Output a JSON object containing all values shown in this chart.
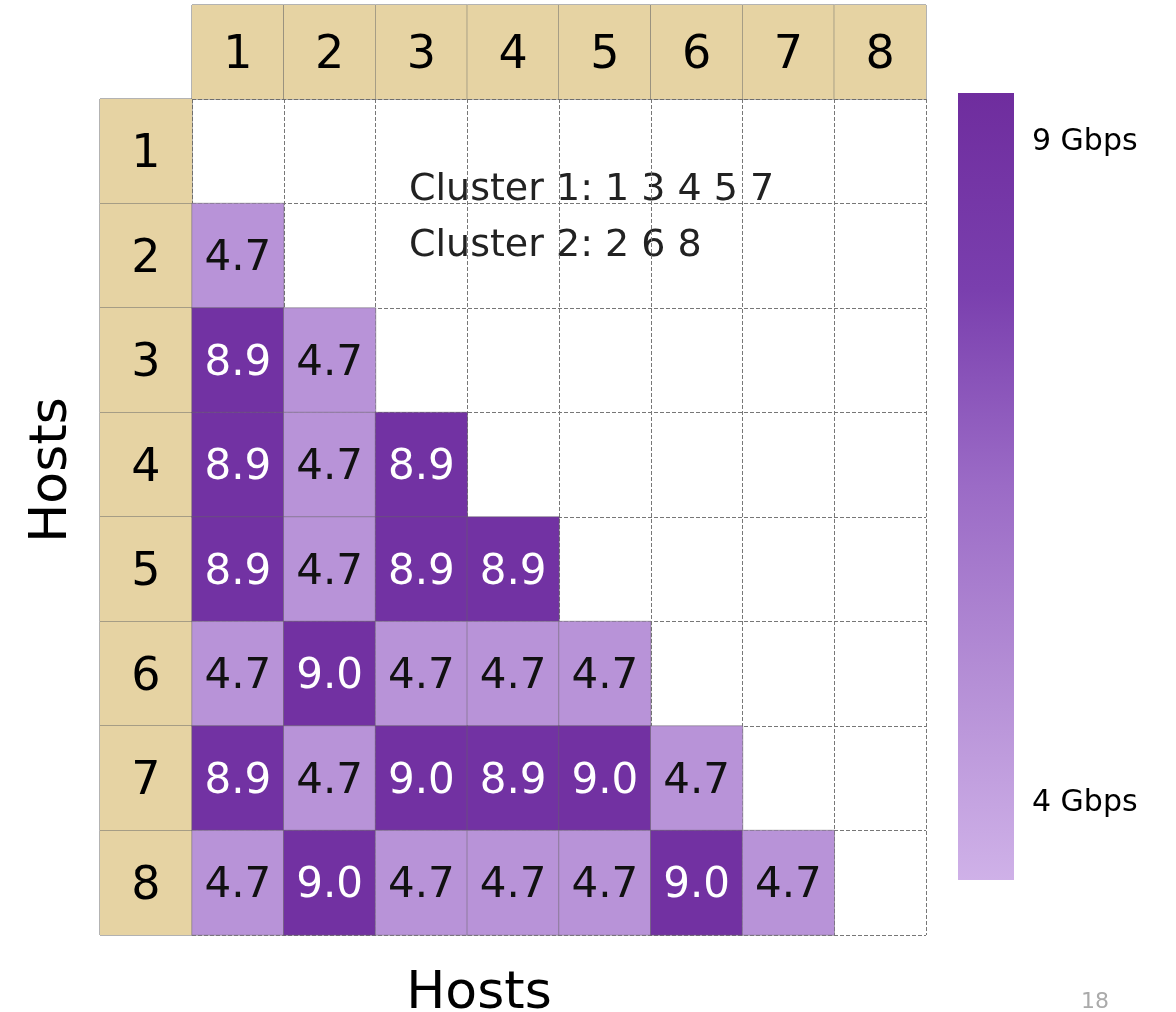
{
  "chart_data": {
    "type": "heatmap",
    "xlabel": "Hosts",
    "ylabel": "Hosts",
    "categories": [
      "1",
      "2",
      "3",
      "4",
      "5",
      "6",
      "7",
      "8"
    ],
    "y_categories": [
      "1",
      "2",
      "3",
      "4",
      "5",
      "6",
      "7",
      "8"
    ],
    "cells": [
      [
        null,
        null,
        null,
        null,
        null,
        null,
        null,
        null
      ],
      [
        4.7,
        null,
        null,
        null,
        null,
        null,
        null,
        null
      ],
      [
        8.9,
        4.7,
        null,
        null,
        null,
        null,
        null,
        null
      ],
      [
        8.9,
        4.7,
        8.9,
        null,
        null,
        null,
        null,
        null
      ],
      [
        8.9,
        4.7,
        8.9,
        8.9,
        null,
        null,
        null,
        null
      ],
      [
        4.7,
        9.0,
        4.7,
        4.7,
        4.7,
        null,
        null,
        null
      ],
      [
        8.9,
        4.7,
        9.0,
        8.9,
        9.0,
        4.7,
        null,
        null
      ],
      [
        4.7,
        9.0,
        4.7,
        4.7,
        4.7,
        9.0,
        4.7,
        null
      ]
    ],
    "cell_labels": [
      [
        null,
        null,
        null,
        null,
        null,
        null,
        null,
        null
      ],
      [
        "4.7",
        null,
        null,
        null,
        null,
        null,
        null,
        null
      ],
      [
        "8.9",
        "4.7",
        null,
        null,
        null,
        null,
        null,
        null
      ],
      [
        "8.9",
        "4.7",
        "8.9",
        null,
        null,
        null,
        null,
        null
      ],
      [
        "8.9",
        "4.7",
        "8.9",
        "8.9",
        null,
        null,
        null,
        null
      ],
      [
        "4.7",
        "9.0",
        "4.7",
        "4.7",
        "4.7",
        null,
        null,
        null
      ],
      [
        "8.9",
        "4.7",
        "9.0",
        "8.9",
        "9.0",
        "4.7",
        null,
        null
      ],
      [
        "4.7",
        "9.0",
        "4.7",
        "4.7",
        "4.7",
        "9.0",
        "4.7",
        null
      ]
    ],
    "clim": [
      3.4,
      9.35
    ],
    "cticks": [
      {
        "value": 4,
        "label": "4 Gbps"
      },
      {
        "value": 9,
        "label": "9 Gbps"
      }
    ],
    "grid": true,
    "annotations": [
      "Cluster 1: 1 3 4 5 7\nCluster 2: 2 6 8",
      "18"
    ]
  }
}
